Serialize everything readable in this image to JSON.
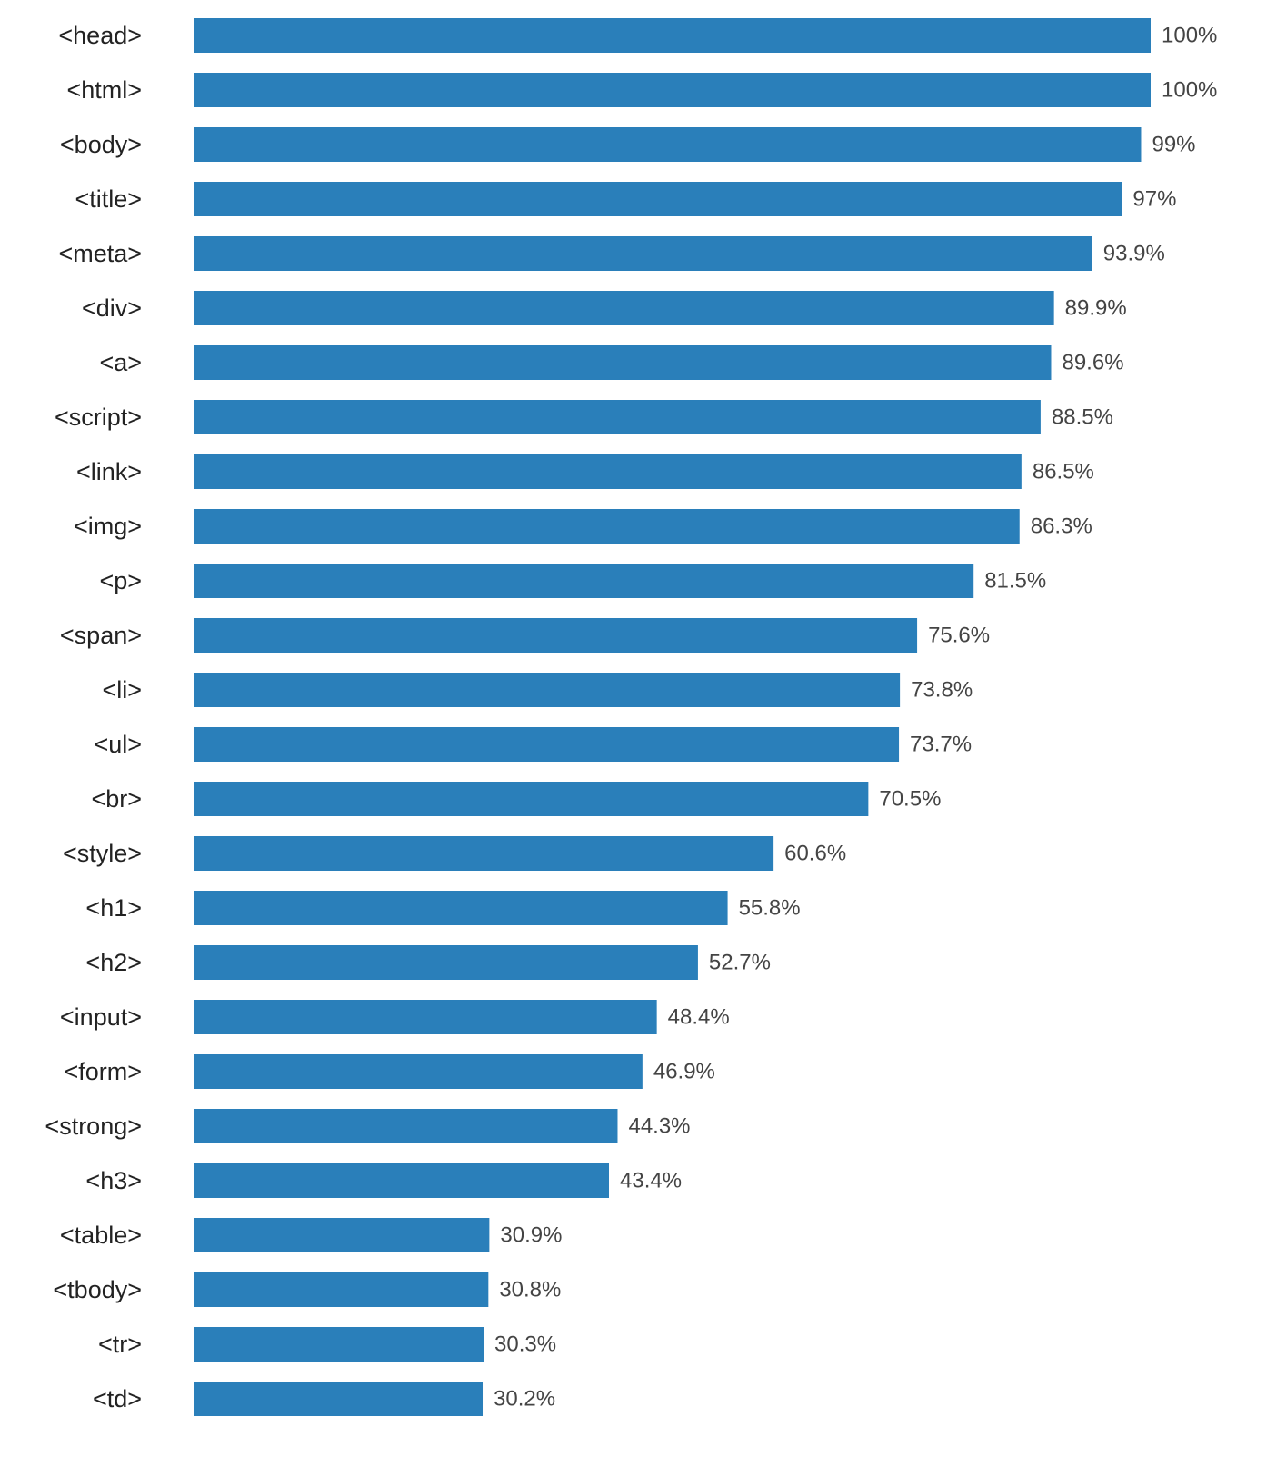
{
  "chart_data": {
    "type": "bar",
    "orientation": "horizontal",
    "title": "",
    "xlabel": "",
    "ylabel": "",
    "xlim": [
      0,
      100
    ],
    "grid": false,
    "legend": "none",
    "bar_color": "#2a7fba",
    "categories": [
      "<head>",
      "<html>",
      "<body>",
      "<title>",
      "<meta>",
      "<div>",
      "<a>",
      "<script>",
      "<link>",
      "<img>",
      "<p>",
      "<span>",
      "<li>",
      "<ul>",
      "<br>",
      "<style>",
      "<h1>",
      "<h2>",
      "<input>",
      "<form>",
      "<strong>",
      "<h3>",
      "<table>",
      "<tbody>",
      "<tr>",
      "<td>"
    ],
    "values": [
      100,
      100,
      99,
      97,
      93.9,
      89.9,
      89.6,
      88.5,
      86.5,
      86.3,
      81.5,
      75.6,
      73.8,
      73.7,
      70.5,
      60.6,
      55.8,
      52.7,
      48.4,
      46.9,
      44.3,
      43.4,
      30.9,
      30.8,
      30.3,
      30.2
    ],
    "value_labels": [
      "100%",
      "100%",
      "99%",
      "97%",
      "93.9%",
      "89.9%",
      "89.6%",
      "88.5%",
      "86.5%",
      "86.3%",
      "81.5%",
      "75.6%",
      "73.8%",
      "73.7%",
      "70.5%",
      "60.6%",
      "55.8%",
      "52.7%",
      "48.4%",
      "46.9%",
      "44.3%",
      "43.4%",
      "30.9%",
      "30.8%",
      "30.3%",
      "30.2%"
    ]
  }
}
